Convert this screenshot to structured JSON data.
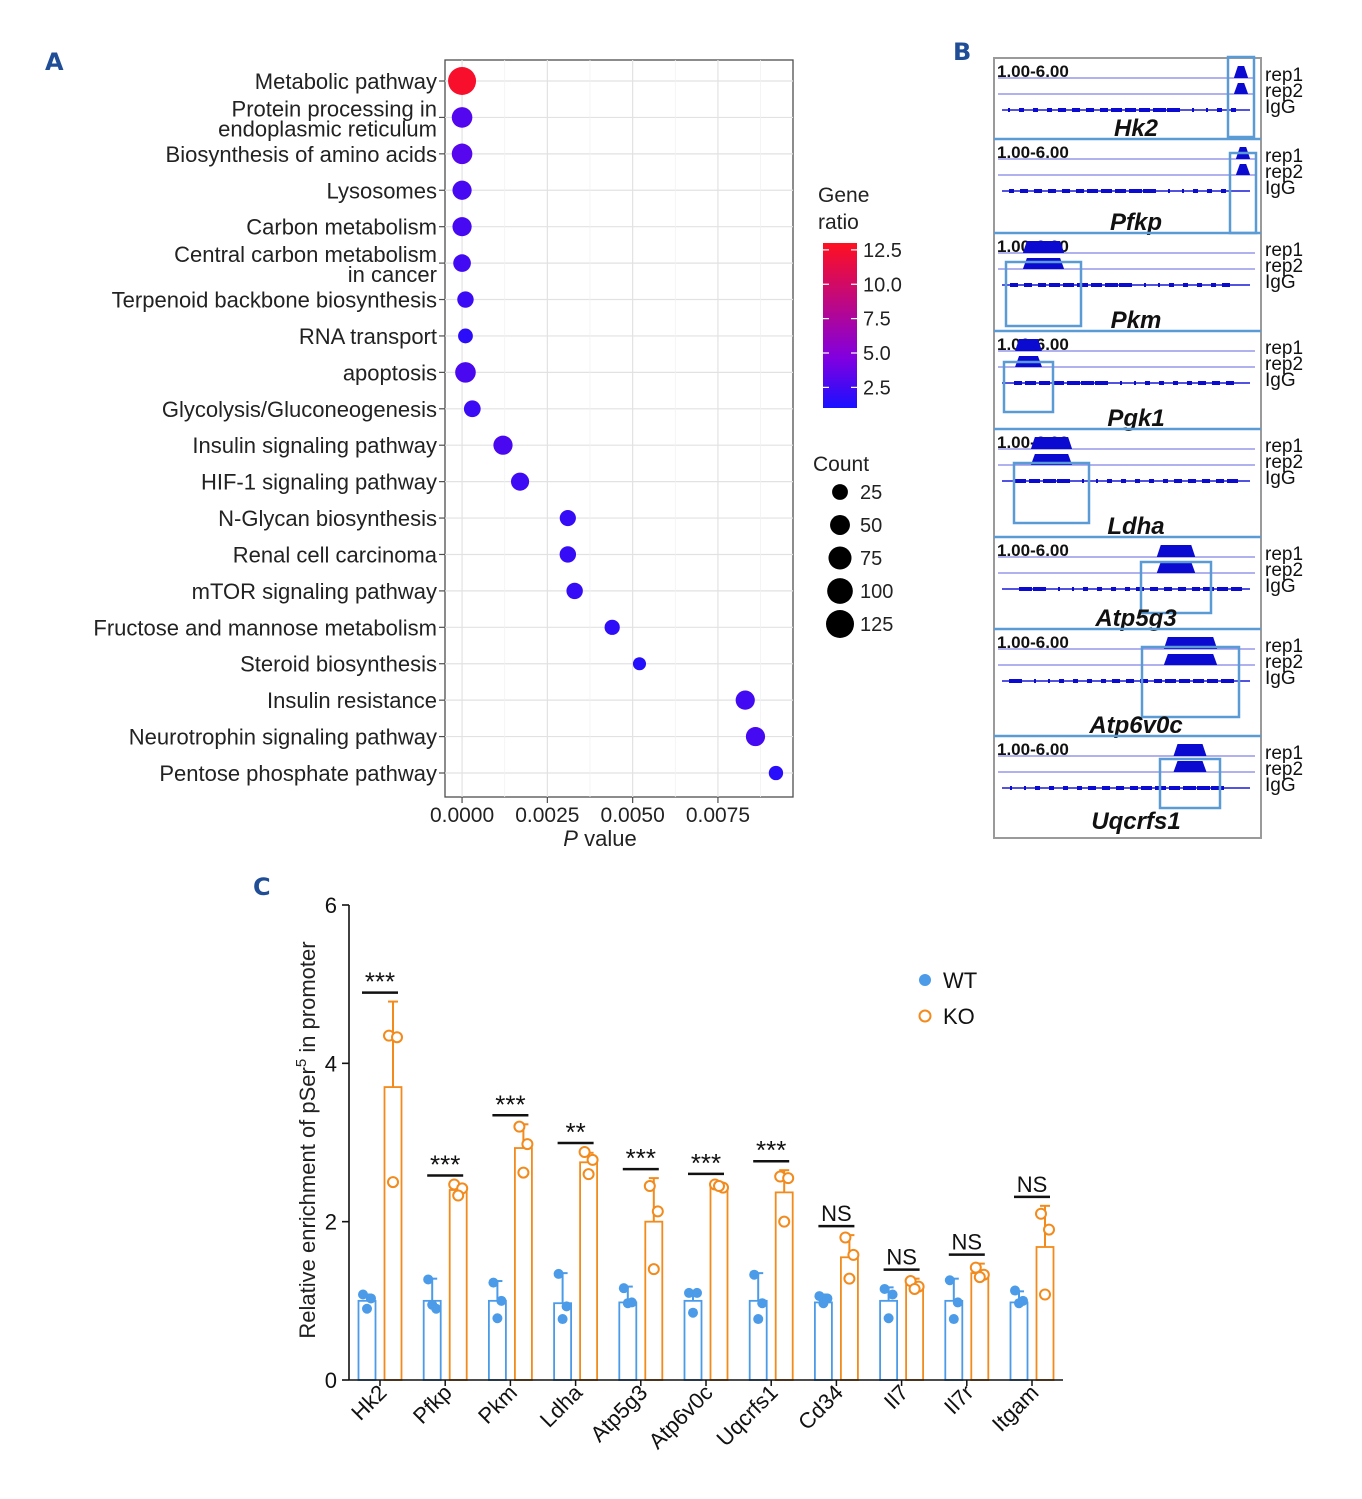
{
  "panels": {
    "a_label": "A",
    "b_label": "B",
    "c_label": "C"
  },
  "chart_data": [
    {
      "type": "scatter",
      "panel": "A",
      "title": "",
      "xlabel_italic": "P",
      "xlabel_rest": " value",
      "xlim": [
        -0.0005,
        0.0097
      ],
      "xticks": [
        0.0,
        0.0025,
        0.005,
        0.0075
      ],
      "xtick_labels": [
        "0.0000",
        "0.0025",
        "0.0050",
        "0.0075"
      ],
      "grid": true,
      "pathways": [
        {
          "name": [
            "Metabolic pathway"
          ],
          "p": 0.0,
          "ratio": 12.5,
          "count": 125
        },
        {
          "name": [
            "Protein processing in",
            "endoplasmic reticulum"
          ],
          "p": 0.0,
          "ratio": 3.0,
          "count": 55
        },
        {
          "name": [
            "Biosynthesis of amino acids"
          ],
          "p": 0.0,
          "ratio": 3.1,
          "count": 55
        },
        {
          "name": [
            "Lysosomes"
          ],
          "p": 0.0,
          "ratio": 2.6,
          "count": 45
        },
        {
          "name": [
            "Carbon metabolism"
          ],
          "p": 0.0,
          "ratio": 2.6,
          "count": 45
        },
        {
          "name": [
            "Central carbon metabolism",
            "in cancer"
          ],
          "p": 0.0,
          "ratio": 2.4,
          "count": 35
        },
        {
          "name": [
            "Terpenoid backbone biosynthesis"
          ],
          "p": 0.0001,
          "ratio": 2.2,
          "count": 28
        },
        {
          "name": [
            "RNA transport"
          ],
          "p": 0.0001,
          "ratio": 1.6,
          "count": 20
        },
        {
          "name": [
            "apoptosis"
          ],
          "p": 0.0001,
          "ratio": 2.7,
          "count": 55
        },
        {
          "name": [
            "Glycolysis/Gluconeogenesis"
          ],
          "p": 0.0003,
          "ratio": 2.2,
          "count": 30
        },
        {
          "name": [
            "Insulin signaling pathway"
          ],
          "p": 0.0012,
          "ratio": 2.7,
          "count": 45
        },
        {
          "name": [
            "HIF-1 signaling pathway"
          ],
          "p": 0.0017,
          "ratio": 2.3,
          "count": 38
        },
        {
          "name": [
            "N-Glycan biosynthesis"
          ],
          "p": 0.0031,
          "ratio": 2.0,
          "count": 27
        },
        {
          "name": [
            "Renal cell carcinoma"
          ],
          "p": 0.0031,
          "ratio": 2.0,
          "count": 28
        },
        {
          "name": [
            "mTOR signaling pathway"
          ],
          "p": 0.0033,
          "ratio": 2.0,
          "count": 28
        },
        {
          "name": [
            "Fructose and mannose metabolism"
          ],
          "p": 0.0044,
          "ratio": 1.7,
          "count": 22
        },
        {
          "name": [
            "Steroid biosynthesis"
          ],
          "p": 0.0052,
          "ratio": 1.3,
          "count": 13
        },
        {
          "name": [
            "Insulin resistance"
          ],
          "p": 0.0083,
          "ratio": 2.4,
          "count": 45
        },
        {
          "name": [
            "Neurotrophin signaling pathway"
          ],
          "p": 0.0086,
          "ratio": 2.5,
          "count": 45
        },
        {
          "name": [
            "Pentose phosphate pathway"
          ],
          "p": 0.0092,
          "ratio": 1.5,
          "count": 18
        }
      ],
      "color_legend": {
        "title": [
          "Gene",
          "ratio"
        ],
        "ticks": [
          "12.5",
          "10.0",
          "7.5",
          "5.0",
          "2.5"
        ],
        "values": [
          12.5,
          10.0,
          7.5,
          5.0,
          2.5
        ],
        "range": [
          1.0,
          13.0
        ],
        "colors": [
          "#1a10ff",
          "#8000e0",
          "#ff1020"
        ]
      },
      "size_legend": {
        "title": "Count",
        "items": [
          {
            "label": "25",
            "count": 25
          },
          {
            "label": "50",
            "count": 50
          },
          {
            "label": "75",
            "count": 75
          },
          {
            "label": "100",
            "count": 100
          },
          {
            "label": "125",
            "count": 125
          }
        ]
      }
    },
    {
      "type": "track",
      "panel": "B",
      "range_label": "1.00-6.00",
      "track_labels": [
        "rep1",
        "rep2",
        "IgG"
      ],
      "genes": [
        "Hk2",
        "Pfkp",
        "Pkm",
        "Pgk1",
        "Ldha",
        "Atp5g3",
        "Atp6v0c",
        "Uqcrfs1"
      ],
      "border_color": "#5b9bd5",
      "signal_color": "#0a0ad0"
    },
    {
      "type": "bar",
      "panel": "C",
      "ylabel_pre": "Relative enrichment of  pSer",
      "ylabel_sup": "5",
      "ylabel_post": " in promoter",
      "ylim": [
        0,
        6
      ],
      "yticks": [
        "0",
        "2",
        "4",
        "6"
      ],
      "categories": [
        "Hk2",
        "Pfkp",
        "Pkm",
        "Ldha",
        "Atp5g3",
        "Atp6v0c",
        "Uqcrfs1",
        "Cd34",
        "Il7",
        "Il7r",
        "Itgam"
      ],
      "series": [
        {
          "name": "WT",
          "color": "#4b9be8",
          "values": [
            1.0,
            1.0,
            1.0,
            0.97,
            0.98,
            1.0,
            1.0,
            0.98,
            1.0,
            1.0,
            0.98
          ],
          "errors": [
            0.08,
            0.28,
            0.25,
            0.38,
            0.2,
            0.1,
            0.35,
            0.1,
            0.17,
            0.28,
            0.14
          ],
          "points": [
            [
              1.08,
              1.03,
              0.9
            ],
            [
              1.27,
              0.9,
              0.95
            ],
            [
              1.23,
              1.0,
              0.78
            ],
            [
              1.34,
              0.93,
              0.77
            ],
            [
              1.16,
              0.98,
              0.97
            ],
            [
              1.1,
              1.1,
              0.85
            ],
            [
              1.33,
              0.97,
              0.77
            ],
            [
              1.06,
              1.03,
              0.97
            ],
            [
              1.15,
              1.08,
              0.78
            ],
            [
              1.26,
              0.98,
              0.77
            ],
            [
              1.13,
              1.0,
              0.97
            ]
          ]
        },
        {
          "name": "KO",
          "color": "#f28a1c",
          "values": [
            3.7,
            2.4,
            2.93,
            2.75,
            2.0,
            2.45,
            2.37,
            1.55,
            1.2,
            1.35,
            1.68
          ],
          "errors": [
            1.08,
            0.06,
            0.3,
            0.12,
            0.55,
            0.04,
            0.28,
            0.28,
            0.08,
            0.12,
            0.52
          ],
          "points": [
            [
              4.35,
              4.33,
              2.5
            ],
            [
              2.47,
              2.42,
              2.33
            ],
            [
              3.2,
              2.98,
              2.62
            ],
            [
              2.88,
              2.78,
              2.6
            ],
            [
              2.45,
              2.13,
              1.4
            ],
            [
              2.47,
              2.43,
              2.45
            ],
            [
              2.57,
              2.55,
              2.0
            ],
            [
              1.8,
              1.58,
              1.28
            ],
            [
              1.25,
              1.18,
              1.15
            ],
            [
              1.42,
              1.33,
              1.3
            ],
            [
              2.1,
              1.9,
              1.08
            ]
          ]
        }
      ],
      "significance": [
        "***",
        "***",
        "***",
        "**",
        "***",
        "***",
        "***",
        "NS",
        "NS",
        "NS",
        "NS"
      ],
      "legend": [
        "WT",
        "KO"
      ]
    }
  ]
}
